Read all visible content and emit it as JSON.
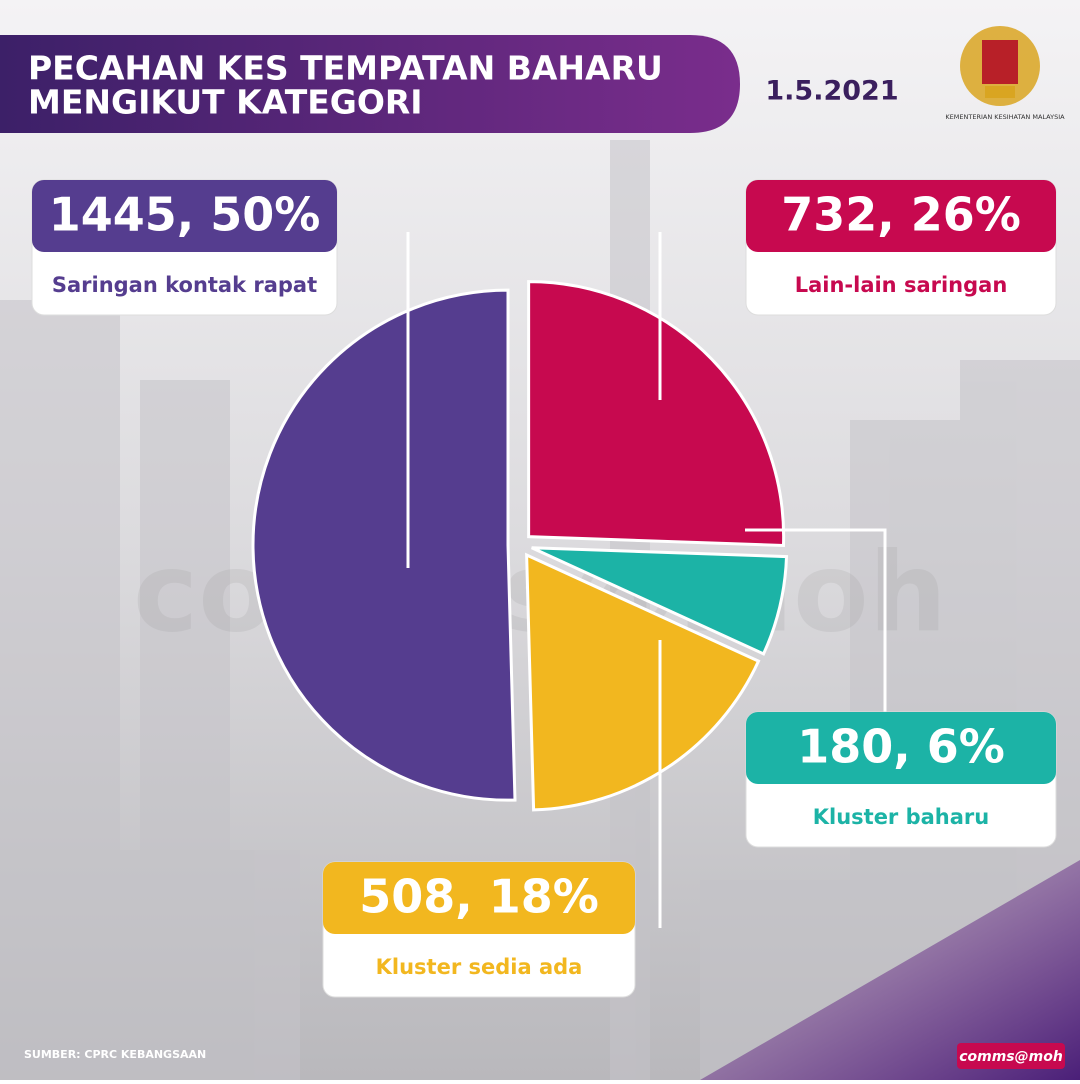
{
  "chart_data": {
    "type": "pie",
    "title": [
      "PECAHAN KES TEMPATAN BAHARU",
      "MENGIKUT KATEGORI"
    ],
    "date": "1.5.2021",
    "ministry": "KEMENTERIAN KESIHATAN MALAYSIA",
    "categories": [
      "Saringan kontak rapat",
      "Lain-lain saringan",
      "Kluster baharu",
      "Kluster sedia ada"
    ],
    "values": [
      1445,
      732,
      180,
      508
    ],
    "value_labels": [
      "1445, 50%",
      "732, 26%",
      "180, 6%",
      "508, 18%"
    ],
    "colors": [
      "#553d8f",
      "#c7094f",
      "#1cb3a6",
      "#f2b71f"
    ],
    "source": "SUMBER: CPRC KEBANGSAAN",
    "brand": "comms@moh"
  }
}
